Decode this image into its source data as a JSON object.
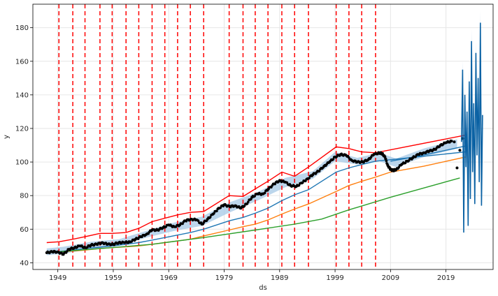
{
  "chart_data": {
    "type": "line",
    "title": "",
    "xlabel": "ds",
    "ylabel": "y",
    "xlim": [
      1944.5,
      2027.5
    ],
    "ylim": [
      36,
      194
    ],
    "x_ticks": [
      1949,
      1959,
      1969,
      1979,
      1989,
      1999,
      2009,
      2019
    ],
    "y_ticks": [
      40,
      60,
      80,
      100,
      120,
      140,
      160,
      180
    ],
    "grid": true,
    "legend": "none",
    "changepoints_x": [
      1949.2,
      1951.7,
      1953.9,
      1956.6,
      1958.8,
      1961.3,
      1963.6,
      1966.0,
      1968.3,
      1970.6,
      1972.9,
      1975.3,
      1979.9,
      1982.4,
      1984.6,
      1986.9,
      1989.4,
      1991.7,
      1994.2,
      1999.2,
      2001.5,
      2003.8,
      2006.3
    ],
    "changepoint_color": "#ff0000",
    "observations": {
      "color": "#000000",
      "x": [
        1947.0,
        1948.0,
        1949.0,
        1950.0,
        1951.0,
        1952.0,
        1953.0,
        1954.0,
        1955.0,
        1956.0,
        1957.0,
        1958.0,
        1959.0,
        1960.0,
        1961.0,
        1962.0,
        1963.0,
        1964.0,
        1965.0,
        1966.0,
        1967.0,
        1968.0,
        1969.0,
        1970.0,
        1971.0,
        1972.0,
        1973.0,
        1974.0,
        1975.0,
        1976.0,
        1977.0,
        1978.0,
        1979.0,
        1980.0,
        1981.0,
        1982.0,
        1983.0,
        1984.0,
        1985.0,
        1986.0,
        1987.0,
        1988.0,
        1989.0,
        1990.0,
        1991.0,
        1992.0,
        1993.0,
        1994.0,
        1995.0,
        1996.0,
        1997.0,
        1998.0,
        1999.0,
        2000.0,
        2001.0,
        2002.0,
        2003.0,
        2004.0,
        2005.0,
        2006.0,
        2007.0,
        2007.5,
        2008.0,
        2008.5,
        2009.0,
        2009.5,
        2010.0,
        2011.0,
        2012.0,
        2013.0,
        2014.0,
        2015.0,
        2016.0,
        2017.0,
        2018.0,
        2019.0,
        2020.0,
        2020.5,
        2021.0,
        2021.5,
        2022.0
      ],
      "y": [
        46.0,
        46.5,
        46.5,
        45.0,
        48.0,
        49.0,
        50.0,
        49.0,
        50.5,
        51.0,
        52.0,
        51.0,
        51.0,
        52.0,
        52.0,
        52.5,
        54.0,
        55.5,
        57.0,
        59.5,
        59.5,
        61.0,
        62.5,
        61.5,
        62.5,
        65.0,
        66.0,
        65.5,
        63.0,
        66.0,
        69.0,
        72.5,
        74.5,
        73.5,
        74.0,
        72.5,
        75.0,
        79.0,
        81.0,
        81.0,
        84.0,
        87.0,
        89.0,
        88.0,
        86.0,
        85.5,
        87.5,
        90.0,
        92.5,
        94.5,
        97.5,
        100.0,
        103.0,
        104.5,
        104.0,
        101.0,
        100.0,
        100.0,
        101.5,
        104.5,
        105.5,
        105.0,
        103.0,
        98.0,
        95.5,
        95.0,
        95.5,
        98.5,
        100.5,
        102.5,
        104.5,
        105.5,
        106.5,
        107.5,
        110.0,
        111.5,
        112.5,
        112.0,
        96.5,
        107.0,
        114.0
      ]
    },
    "uncertainty_band": {
      "color": "#a6c8e6",
      "x": [
        1947.0,
        1950.0,
        1955.0,
        1960.0,
        1965.0,
        1970.0,
        1975.0,
        1980.0,
        1985.0,
        1990.0,
        1995.0,
        1999.0,
        2003.0,
        2007.0,
        2010.0,
        2015.0,
        2021.0
      ],
      "lower": [
        44.5,
        45.5,
        48.0,
        50.0,
        55.0,
        59.0,
        62.0,
        70.0,
        77.0,
        85.0,
        90.0,
        100.5,
        98.5,
        100.5,
        97.0,
        103.0,
        108.0
      ],
      "upper": [
        48.5,
        49.5,
        52.5,
        54.0,
        59.0,
        64.0,
        67.5,
        76.0,
        82.0,
        90.5,
        94.5,
        106.0,
        102.5,
        105.5,
        102.0,
        108.0,
        113.5
      ]
    },
    "series": [
      {
        "color": "#1f77b4",
        "x": [
          1947.0,
          1949.2,
          1951.7,
          1953.9,
          1956.6,
          1958.8,
          1961.3,
          1963.6,
          1966.0,
          1968.3,
          1970.6,
          1972.9,
          1975.3,
          1979.9,
          1982.4,
          1984.6,
          1986.9,
          1989.4,
          1991.7,
          1994.2,
          1999.2,
          2001.5,
          2003.8,
          2006.3,
          2022.5
        ],
        "y": [
          46.0,
          46.7,
          47.5,
          48.5,
          49.3,
          50.0,
          51.0,
          52.0,
          53.5,
          55.0,
          56.5,
          58.0,
          60.0,
          65.0,
          67.0,
          69.5,
          72.5,
          77.0,
          80.5,
          83.5,
          94.0,
          96.5,
          98.5,
          100.5,
          106.0
        ]
      },
      {
        "color": "#ff7f0e",
        "x": [
          1947.0,
          1949.2,
          1951.7,
          1953.9,
          1956.6,
          1958.8,
          1961.3,
          1963.6,
          1966.0,
          1968.3,
          1970.6,
          1972.9,
          1975.3,
          1979.9,
          1982.4,
          1984.6,
          1986.9,
          1989.4,
          1991.7,
          1994.2,
          1999.2,
          2001.5,
          2003.8,
          2006.3,
          2009.0,
          2015.0,
          2022.5
        ],
        "y": [
          46.0,
          46.5,
          47.0,
          47.5,
          48.5,
          49.0,
          49.5,
          50.0,
          51.0,
          52.0,
          53.0,
          54.0,
          56.0,
          59.5,
          61.5,
          63.0,
          65.5,
          69.0,
          72.0,
          75.0,
          82.5,
          86.0,
          88.5,
          91.0,
          94.0,
          97.5,
          103.0
        ]
      },
      {
        "color": "#2ca02c",
        "x": [
          1947.0,
          1958.8,
          1966.0,
          1975.3,
          1984.6,
          1991.7,
          1996.6,
          2001.5,
          2009.0,
          2021.5
        ],
        "y": [
          46.0,
          49.0,
          51.0,
          55.0,
          59.5,
          63.0,
          66.0,
          71.5,
          79.0,
          90.5
        ]
      },
      {
        "color": "#ff0000",
        "x": [
          1947.0,
          1949.2,
          1951.7,
          1953.9,
          1956.6,
          1958.8,
          1961.3,
          1963.6,
          1966.0,
          1968.3,
          1970.6,
          1972.9,
          1975.3,
          1979.9,
          1982.4,
          1984.6,
          1986.9,
          1989.4,
          1991.7,
          1994.2,
          1999.2,
          2001.5,
          2003.8,
          2006.3,
          2022.5
        ],
        "y": [
          52.0,
          52.5,
          54.0,
          55.5,
          57.5,
          57.5,
          58.0,
          60.5,
          64.5,
          66.5,
          68.5,
          70.0,
          70.5,
          80.0,
          79.5,
          84.0,
          88.5,
          94.0,
          91.5,
          97.0,
          109.0,
          108.0,
          106.0,
          105.5,
          116.0
        ]
      },
      {
        "color": "#1f77b4",
        "x": [
          2009.0,
          2014.0,
          2019.0,
          2022.5
        ],
        "y": [
          100.5,
          103.5,
          107.0,
          109.5
        ]
      }
    ],
    "forecast_tail": {
      "color": "#0b62a4",
      "x": [
        2021.8,
        2022.0,
        2022.2,
        2022.4,
        2022.6,
        2022.8,
        2023.0,
        2023.2,
        2023.4,
        2023.6,
        2023.8,
        2024.0,
        2024.2,
        2024.4,
        2024.6,
        2024.8,
        2025.0,
        2025.2,
        2025.4,
        2025.6
      ],
      "y": [
        112.0,
        155.0,
        58.0,
        140.0,
        97.0,
        130.0,
        62.0,
        148.0,
        78.0,
        172.0,
        94.0,
        135.0,
        75.0,
        165.0,
        104.0,
        150.0,
        88.0,
        183.0,
        74.0,
        128.0
      ],
      "band_lower": [
        108.0,
        150.0,
        55.0,
        133.0,
        92.0,
        124.0,
        58.0,
        141.0,
        73.0,
        165.0,
        88.0,
        128.0,
        71.0,
        158.0,
        98.0,
        143.0,
        83.0,
        176.0,
        70.0,
        121.0
      ],
      "band_upper": [
        116.0,
        160.0,
        62.0,
        147.0,
        102.0,
        136.0,
        66.0,
        155.0,
        83.0,
        179.0,
        100.0,
        142.0,
        79.0,
        172.0,
        110.0,
        157.0,
        93.0,
        190.0,
        78.0,
        135.0
      ]
    }
  }
}
